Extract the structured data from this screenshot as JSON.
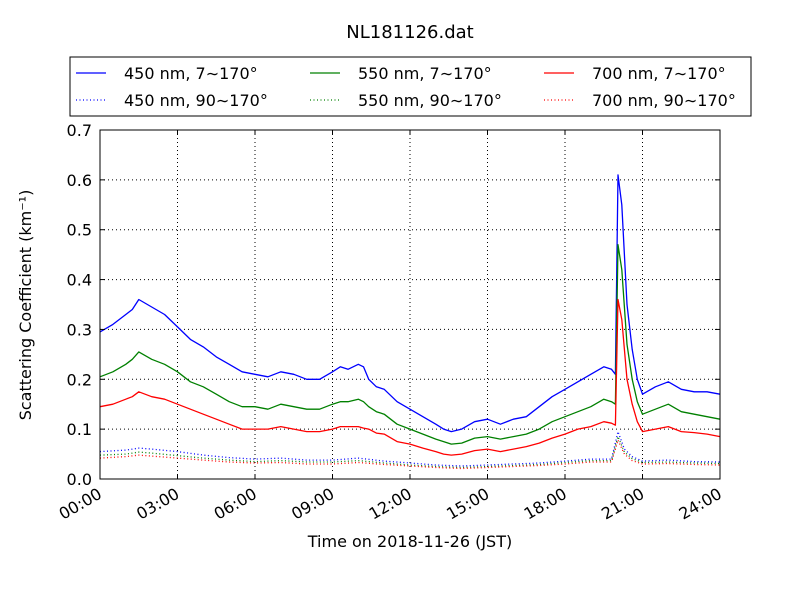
{
  "chart_data": {
    "type": "line",
    "title": "NL181126.dat",
    "xlabel": "Time on 2018-11-26 (JST)",
    "ylabel": "Scattering Coefficient (km⁻¹)",
    "x_unit": "hours",
    "xlim": [
      0,
      24
    ],
    "ylim": [
      0,
      0.7
    ],
    "xticks": [
      0,
      3,
      6,
      9,
      12,
      15,
      18,
      21,
      24
    ],
    "xtick_labels": [
      "00:00",
      "03:00",
      "06:00",
      "09:00",
      "12:00",
      "15:00",
      "18:00",
      "21:00",
      "24:00"
    ],
    "yticks": [
      0.0,
      0.1,
      0.2,
      0.3,
      0.4,
      0.5,
      0.6,
      0.7
    ],
    "ytick_labels": [
      "0.0",
      "0.1",
      "0.2",
      "0.3",
      "0.4",
      "0.5",
      "0.6",
      "0.7"
    ],
    "grid": true,
    "legend_position": "top",
    "legend_columns": 3,
    "series": [
      {
        "name": "450 nm, 7∼170°",
        "color": "#0000ff",
        "style": "solid",
        "x": [
          0,
          0.5,
          1,
          1.25,
          1.5,
          2,
          2.5,
          3,
          3.5,
          4,
          4.5,
          5,
          5.5,
          6,
          6.5,
          7,
          7.5,
          8,
          8.5,
          9,
          9.3,
          9.6,
          10,
          10.2,
          10.4,
          10.7,
          11,
          11.5,
          12,
          12.5,
          13,
          13.3,
          13.6,
          14,
          14.5,
          15,
          15.5,
          16,
          16.5,
          17,
          17.5,
          18,
          18.5,
          19,
          19.5,
          19.8,
          19.95,
          20.05,
          20.2,
          20.4,
          20.6,
          20.8,
          21,
          21.5,
          22,
          22.5,
          23,
          23.5,
          24
        ],
        "y": [
          0.295,
          0.31,
          0.33,
          0.34,
          0.36,
          0.345,
          0.33,
          0.305,
          0.28,
          0.265,
          0.245,
          0.23,
          0.215,
          0.21,
          0.205,
          0.215,
          0.21,
          0.2,
          0.2,
          0.215,
          0.225,
          0.22,
          0.23,
          0.225,
          0.2,
          0.185,
          0.18,
          0.155,
          0.14,
          0.125,
          0.11,
          0.1,
          0.095,
          0.1,
          0.115,
          0.12,
          0.11,
          0.12,
          0.125,
          0.145,
          0.165,
          0.18,
          0.195,
          0.21,
          0.225,
          0.22,
          0.21,
          0.61,
          0.55,
          0.35,
          0.26,
          0.2,
          0.17,
          0.185,
          0.195,
          0.18,
          0.175,
          0.175,
          0.17
        ]
      },
      {
        "name": "550 nm, 7∼170°",
        "color": "#008000",
        "style": "solid",
        "x": [
          0,
          0.5,
          1,
          1.25,
          1.5,
          2,
          2.5,
          3,
          3.5,
          4,
          4.5,
          5,
          5.5,
          6,
          6.5,
          7,
          7.5,
          8,
          8.5,
          9,
          9.3,
          9.6,
          10,
          10.2,
          10.4,
          10.7,
          11,
          11.5,
          12,
          12.5,
          13,
          13.3,
          13.6,
          14,
          14.5,
          15,
          15.5,
          16,
          16.5,
          17,
          17.5,
          18,
          18.5,
          19,
          19.5,
          19.8,
          19.95,
          20.05,
          20.2,
          20.4,
          20.6,
          20.8,
          21,
          21.5,
          22,
          22.5,
          23,
          23.5,
          24
        ],
        "y": [
          0.205,
          0.215,
          0.23,
          0.24,
          0.255,
          0.24,
          0.23,
          0.215,
          0.195,
          0.185,
          0.17,
          0.155,
          0.145,
          0.145,
          0.14,
          0.15,
          0.145,
          0.14,
          0.14,
          0.15,
          0.155,
          0.155,
          0.16,
          0.155,
          0.145,
          0.135,
          0.13,
          0.11,
          0.1,
          0.09,
          0.08,
          0.075,
          0.07,
          0.072,
          0.082,
          0.085,
          0.08,
          0.085,
          0.09,
          0.1,
          0.115,
          0.125,
          0.135,
          0.145,
          0.16,
          0.155,
          0.15,
          0.47,
          0.42,
          0.27,
          0.2,
          0.155,
          0.13,
          0.14,
          0.15,
          0.135,
          0.13,
          0.125,
          0.12
        ]
      },
      {
        "name": "700 nm, 7∼170°",
        "color": "#ff0000",
        "style": "solid",
        "x": [
          0,
          0.5,
          1,
          1.25,
          1.5,
          2,
          2.5,
          3,
          3.5,
          4,
          4.5,
          5,
          5.5,
          6,
          6.5,
          7,
          7.5,
          8,
          8.5,
          9,
          9.3,
          9.6,
          10,
          10.2,
          10.4,
          10.7,
          11,
          11.5,
          12,
          12.5,
          13,
          13.3,
          13.6,
          14,
          14.5,
          15,
          15.5,
          16,
          16.5,
          17,
          17.5,
          18,
          18.5,
          19,
          19.5,
          19.8,
          19.95,
          20.05,
          20.2,
          20.4,
          20.6,
          20.8,
          21,
          21.5,
          22,
          22.5,
          23,
          23.5,
          24
        ],
        "y": [
          0.145,
          0.15,
          0.16,
          0.165,
          0.175,
          0.165,
          0.16,
          0.15,
          0.14,
          0.13,
          0.12,
          0.11,
          0.1,
          0.1,
          0.1,
          0.105,
          0.1,
          0.095,
          0.095,
          0.1,
          0.105,
          0.105,
          0.105,
          0.102,
          0.1,
          0.092,
          0.09,
          0.075,
          0.07,
          0.062,
          0.055,
          0.05,
          0.048,
          0.05,
          0.057,
          0.06,
          0.055,
          0.06,
          0.065,
          0.072,
          0.082,
          0.09,
          0.1,
          0.105,
          0.115,
          0.112,
          0.108,
          0.36,
          0.32,
          0.2,
          0.15,
          0.115,
          0.095,
          0.1,
          0.105,
          0.095,
          0.093,
          0.09,
          0.085
        ]
      },
      {
        "name": "450 nm, 90∼170°",
        "color": "#0000ff",
        "style": "dotted",
        "x": [
          0,
          1,
          1.5,
          2,
          3,
          4,
          5,
          6,
          7,
          8,
          9,
          10,
          11,
          12,
          13,
          14,
          15,
          16,
          17,
          18,
          19,
          19.8,
          20.05,
          20.3,
          20.6,
          21,
          22,
          23,
          24
        ],
        "y": [
          0.055,
          0.058,
          0.062,
          0.06,
          0.055,
          0.048,
          0.043,
          0.04,
          0.042,
          0.038,
          0.038,
          0.042,
          0.036,
          0.032,
          0.028,
          0.026,
          0.028,
          0.03,
          0.032,
          0.036,
          0.04,
          0.04,
          0.095,
          0.06,
          0.045,
          0.036,
          0.038,
          0.035,
          0.034
        ]
      },
      {
        "name": "550 nm, 90∼170°",
        "color": "#008000",
        "style": "dotted",
        "x": [
          0,
          1,
          1.5,
          2,
          3,
          4,
          5,
          6,
          7,
          8,
          9,
          10,
          11,
          12,
          13,
          14,
          15,
          16,
          17,
          18,
          19,
          19.8,
          20.05,
          20.3,
          20.6,
          21,
          22,
          23,
          24
        ],
        "y": [
          0.048,
          0.05,
          0.054,
          0.052,
          0.047,
          0.042,
          0.038,
          0.035,
          0.037,
          0.034,
          0.034,
          0.037,
          0.032,
          0.028,
          0.025,
          0.023,
          0.025,
          0.027,
          0.029,
          0.033,
          0.037,
          0.037,
          0.085,
          0.054,
          0.041,
          0.033,
          0.034,
          0.032,
          0.031
        ]
      },
      {
        "name": "700 nm, 90∼170°",
        "color": "#ff0000",
        "style": "dotted",
        "x": [
          0,
          1,
          1.5,
          2,
          3,
          4,
          5,
          6,
          7,
          8,
          9,
          10,
          11,
          12,
          13,
          14,
          15,
          16,
          17,
          18,
          19,
          19.8,
          20.05,
          20.3,
          20.6,
          21,
          22,
          23,
          24
        ],
        "y": [
          0.042,
          0.045,
          0.048,
          0.046,
          0.042,
          0.038,
          0.034,
          0.032,
          0.033,
          0.03,
          0.03,
          0.033,
          0.029,
          0.026,
          0.023,
          0.021,
          0.023,
          0.025,
          0.027,
          0.03,
          0.034,
          0.034,
          0.078,
          0.05,
          0.037,
          0.03,
          0.031,
          0.029,
          0.028
        ]
      }
    ]
  }
}
